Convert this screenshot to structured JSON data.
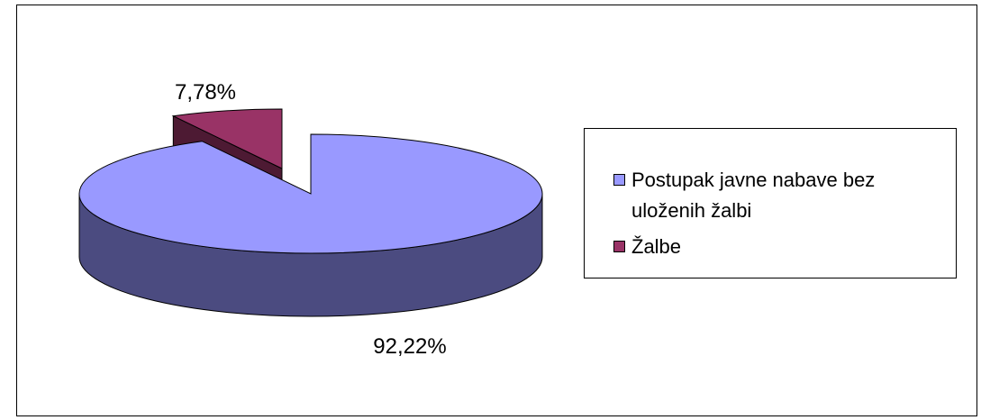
{
  "chart_data": {
    "type": "pie",
    "categories": [
      "Postupak javne nabave bez uloženih žalbi",
      "Žalbe"
    ],
    "values": [
      92.22,
      7.78
    ],
    "value_labels": [
      "92,22%",
      "7,78%"
    ],
    "colors": [
      "#9999ff",
      "#993366"
    ],
    "side_colors": [
      "#4b4b80",
      "#4d1a33"
    ],
    "legend": "right"
  }
}
